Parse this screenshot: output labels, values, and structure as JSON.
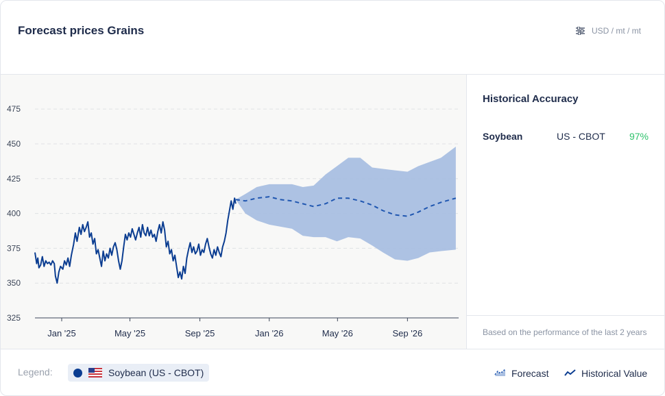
{
  "header": {
    "title": "Forecast prices Grains",
    "units": "USD / mt / mt"
  },
  "icons": {
    "units": "sliders-icon",
    "forecast": "area-chart-icon",
    "historical": "line-chart-icon",
    "flag": "us-flag-icon"
  },
  "colors": {
    "historical_line": "#0b3d91",
    "forecast_band": "#a9bfe1",
    "forecast_line": "#1f56b0",
    "accuracy_value": "#2ec26b",
    "legend_dot": "#0b3d91"
  },
  "chart_data": {
    "type": "line",
    "ylim": [
      325,
      480
    ],
    "y_ticks": [
      325,
      350,
      375,
      400,
      425,
      450,
      475
    ],
    "x_ticks": [
      "Jan '25",
      "May '25",
      "Sep '25",
      "Jan '26",
      "May '26",
      "Sep '26"
    ],
    "x_tick_dates": [
      "2025-01-01",
      "2025-05-01",
      "2025-09-01",
      "2026-01-01",
      "2026-05-01",
      "2026-09-01"
    ],
    "xlim": [
      "2024-11-15",
      "2026-11-30"
    ],
    "grid": true,
    "series": [
      {
        "name": "Historical Value",
        "style": "solid",
        "points": [
          [
            "2024-11-15",
            372
          ],
          [
            "2024-11-18",
            364
          ],
          [
            "2024-11-20",
            368
          ],
          [
            "2024-11-22",
            361
          ],
          [
            "2024-11-25",
            363
          ],
          [
            "2024-11-28",
            369
          ],
          [
            "2024-12-01",
            362
          ],
          [
            "2024-12-04",
            366
          ],
          [
            "2024-12-07",
            364
          ],
          [
            "2024-12-10",
            365
          ],
          [
            "2024-12-13",
            363
          ],
          [
            "2024-12-16",
            366
          ],
          [
            "2024-12-19",
            364
          ],
          [
            "2024-12-21",
            355
          ],
          [
            "2024-12-24",
            350
          ],
          [
            "2024-12-27",
            358
          ],
          [
            "2024-12-30",
            362
          ],
          [
            "2025-01-03",
            360
          ],
          [
            "2025-01-06",
            366
          ],
          [
            "2025-01-09",
            363
          ],
          [
            "2025-01-12",
            368
          ],
          [
            "2025-01-15",
            362
          ],
          [
            "2025-01-18",
            370
          ],
          [
            "2025-01-22",
            378
          ],
          [
            "2025-01-25",
            386
          ],
          [
            "2025-01-28",
            380
          ],
          [
            "2025-02-01",
            390
          ],
          [
            "2025-02-04",
            385
          ],
          [
            "2025-02-07",
            392
          ],
          [
            "2025-02-10",
            387
          ],
          [
            "2025-02-13",
            390
          ],
          [
            "2025-02-16",
            394
          ],
          [
            "2025-02-19",
            383
          ],
          [
            "2025-02-22",
            386
          ],
          [
            "2025-02-25",
            378
          ],
          [
            "2025-02-28",
            382
          ],
          [
            "2025-03-03",
            371
          ],
          [
            "2025-03-06",
            374
          ],
          [
            "2025-03-09",
            368
          ],
          [
            "2025-03-12",
            362
          ],
          [
            "2025-03-15",
            373
          ],
          [
            "2025-03-18",
            366
          ],
          [
            "2025-03-21",
            371
          ],
          [
            "2025-03-24",
            368
          ],
          [
            "2025-03-27",
            375
          ],
          [
            "2025-03-30",
            370
          ],
          [
            "2025-04-02",
            376
          ],
          [
            "2025-04-05",
            379
          ],
          [
            "2025-04-08",
            374
          ],
          [
            "2025-04-11",
            366
          ],
          [
            "2025-04-14",
            360
          ],
          [
            "2025-04-17",
            366
          ],
          [
            "2025-04-20",
            376
          ],
          [
            "2025-04-23",
            385
          ],
          [
            "2025-04-26",
            381
          ],
          [
            "2025-04-29",
            386
          ],
          [
            "2025-05-02",
            383
          ],
          [
            "2025-05-05",
            389
          ],
          [
            "2025-05-08",
            385
          ],
          [
            "2025-05-11",
            381
          ],
          [
            "2025-05-14",
            386
          ],
          [
            "2025-05-17",
            390
          ],
          [
            "2025-05-20",
            383
          ],
          [
            "2025-05-23",
            392
          ],
          [
            "2025-05-26",
            386
          ],
          [
            "2025-05-29",
            384
          ],
          [
            "2025-06-01",
            390
          ],
          [
            "2025-06-04",
            384
          ],
          [
            "2025-06-07",
            388
          ],
          [
            "2025-06-10",
            383
          ],
          [
            "2025-06-13",
            385
          ],
          [
            "2025-06-16",
            380
          ],
          [
            "2025-06-19",
            387
          ],
          [
            "2025-06-22",
            392
          ],
          [
            "2025-06-25",
            386
          ],
          [
            "2025-06-28",
            394
          ],
          [
            "2025-07-01",
            388
          ],
          [
            "2025-07-04",
            376
          ],
          [
            "2025-07-07",
            380
          ],
          [
            "2025-07-10",
            371
          ],
          [
            "2025-07-13",
            374
          ],
          [
            "2025-07-16",
            366
          ],
          [
            "2025-07-19",
            370
          ],
          [
            "2025-07-22",
            362
          ],
          [
            "2025-07-25",
            354
          ],
          [
            "2025-07-28",
            358
          ],
          [
            "2025-07-31",
            353
          ],
          [
            "2025-08-03",
            362
          ],
          [
            "2025-08-06",
            357
          ],
          [
            "2025-08-09",
            368
          ],
          [
            "2025-08-12",
            374
          ],
          [
            "2025-08-15",
            379
          ],
          [
            "2025-08-18",
            372
          ],
          [
            "2025-08-21",
            376
          ],
          [
            "2025-08-24",
            371
          ],
          [
            "2025-08-27",
            373
          ],
          [
            "2025-08-30",
            378
          ],
          [
            "2025-09-02",
            370
          ],
          [
            "2025-09-05",
            374
          ],
          [
            "2025-09-08",
            372
          ],
          [
            "2025-09-11",
            378
          ],
          [
            "2025-09-14",
            382
          ],
          [
            "2025-09-17",
            376
          ],
          [
            "2025-09-20",
            371
          ],
          [
            "2025-09-23",
            368
          ],
          [
            "2025-09-26",
            374
          ],
          [
            "2025-09-29",
            370
          ],
          [
            "2025-10-02",
            376
          ],
          [
            "2025-10-05",
            372
          ],
          [
            "2025-10-08",
            369
          ],
          [
            "2025-10-11",
            376
          ],
          [
            "2025-10-14",
            380
          ],
          [
            "2025-10-17",
            386
          ],
          [
            "2025-10-20",
            395
          ],
          [
            "2025-10-23",
            402
          ],
          [
            "2025-10-26",
            409
          ],
          [
            "2025-10-29",
            403
          ],
          [
            "2025-11-01",
            411
          ],
          [
            "2025-11-03",
            407
          ]
        ]
      },
      {
        "name": "Forecast",
        "style": "dashed",
        "points": [
          [
            "2025-11-03",
            410
          ],
          [
            "2025-11-20",
            409
          ],
          [
            "2025-12-10",
            411
          ],
          [
            "2026-01-01",
            412
          ],
          [
            "2026-01-20",
            410
          ],
          [
            "2026-02-10",
            409
          ],
          [
            "2026-03-01",
            407
          ],
          [
            "2026-03-20",
            405
          ],
          [
            "2026-04-10",
            407
          ],
          [
            "2026-04-30",
            411
          ],
          [
            "2026-05-20",
            411
          ],
          [
            "2026-06-10",
            409
          ],
          [
            "2026-07-01",
            406
          ],
          [
            "2026-07-20",
            402
          ],
          [
            "2026-08-10",
            399
          ],
          [
            "2026-09-01",
            398
          ],
          [
            "2026-09-20",
            401
          ],
          [
            "2026-10-10",
            405
          ],
          [
            "2026-10-30",
            408
          ],
          [
            "2026-11-25",
            411
          ]
        ],
        "band": [
          [
            "2025-11-03",
            410,
            410
          ],
          [
            "2025-11-20",
            414,
            400
          ],
          [
            "2025-12-10",
            419,
            395
          ],
          [
            "2026-01-01",
            421,
            392
          ],
          [
            "2026-02-10",
            421,
            389
          ],
          [
            "2026-03-01",
            419,
            384
          ],
          [
            "2026-03-20",
            420,
            383
          ],
          [
            "2026-04-10",
            428,
            383
          ],
          [
            "2026-04-30",
            434,
            380
          ],
          [
            "2026-05-20",
            440,
            383
          ],
          [
            "2026-06-10",
            440,
            382
          ],
          [
            "2026-07-01",
            433,
            377
          ],
          [
            "2026-07-20",
            432,
            372
          ],
          [
            "2026-08-10",
            431,
            367
          ],
          [
            "2026-09-01",
            430,
            366
          ],
          [
            "2026-09-20",
            434,
            368
          ],
          [
            "2026-10-10",
            437,
            372
          ],
          [
            "2026-10-30",
            440,
            373
          ],
          [
            "2026-11-25",
            448,
            374
          ]
        ]
      }
    ]
  },
  "accuracy": {
    "title": "Historical Accuracy",
    "rows": [
      {
        "commodity": "Soybean",
        "exchange": "US - CBOT",
        "value": "97%"
      }
    ],
    "footnote": "Based on the performance of the last 2 years"
  },
  "footer": {
    "legend_label": "Legend:",
    "chip_label": "Soybean (US - CBOT)",
    "forecast_label": "Forecast",
    "historical_label": "Historical Value"
  }
}
